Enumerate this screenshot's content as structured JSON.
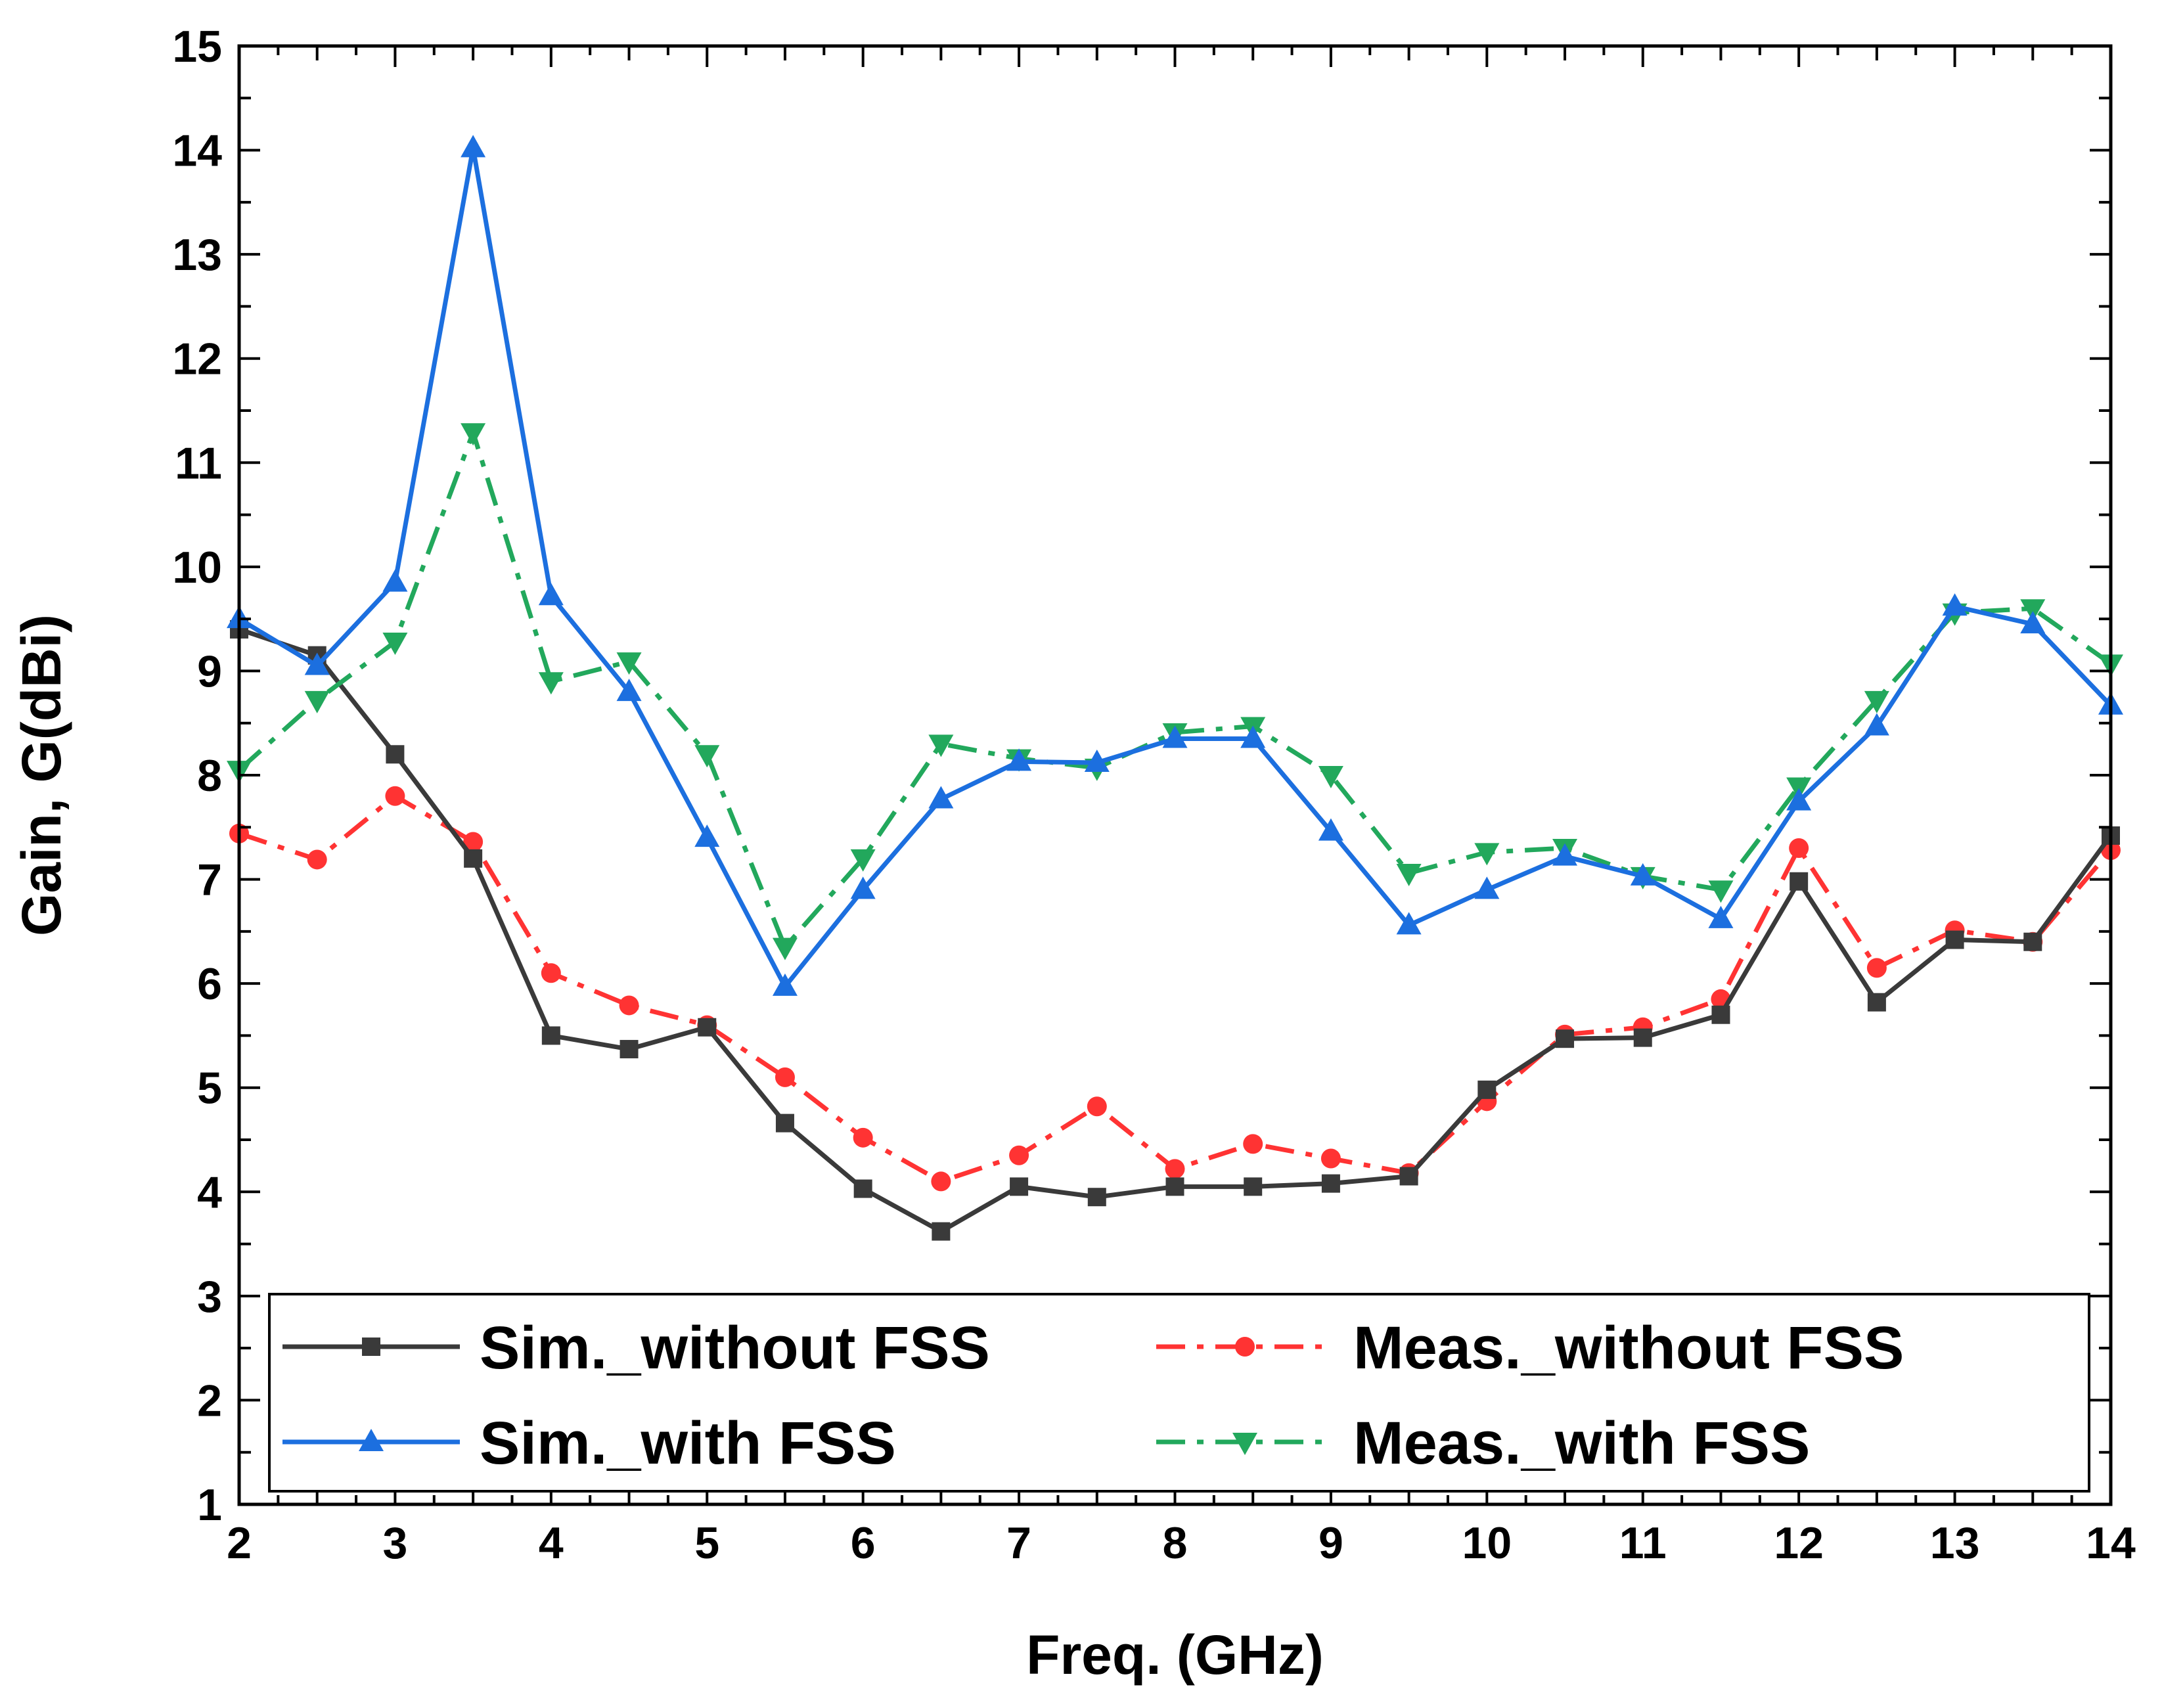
{
  "chart_data": {
    "type": "line",
    "xlabel": "Freq. (GHz)",
    "ylabel": "Gain, G(dBi)",
    "xlim": [
      2,
      14
    ],
    "ylim": [
      1,
      15
    ],
    "xticks": [
      2,
      3,
      4,
      5,
      6,
      7,
      8,
      9,
      10,
      11,
      12,
      13,
      14
    ],
    "yticks": [
      1,
      2,
      3,
      4,
      5,
      6,
      7,
      8,
      9,
      10,
      11,
      12,
      13,
      14,
      15
    ],
    "grid": false,
    "legend_position": "bottom",
    "x": [
      2,
      2.5,
      3,
      3.5,
      4,
      4.5,
      5,
      5.5,
      6,
      6.5,
      7,
      7.5,
      8,
      8.5,
      9,
      9.5,
      10,
      10.5,
      11,
      11.5,
      12,
      12.5,
      13,
      13.5,
      14
    ],
    "series": [
      {
        "name": "Sim._without FSS",
        "color": "#3a3a3a",
        "marker": "square",
        "dash": "solid",
        "values": [
          9.4,
          9.15,
          8.2,
          7.2,
          5.5,
          5.37,
          5.58,
          4.66,
          4.03,
          3.62,
          4.05,
          3.95,
          4.05,
          4.05,
          4.08,
          4.15,
          4.98,
          5.47,
          5.48,
          5.7,
          6.98,
          5.82,
          6.42,
          6.4,
          7.42
        ]
      },
      {
        "name": "Meas._without FSS",
        "color": "#ff3333",
        "marker": "circle",
        "dash": "dash-dot",
        "values": [
          7.44,
          7.19,
          7.8,
          7.36,
          6.1,
          5.79,
          5.6,
          5.1,
          4.52,
          4.1,
          4.35,
          4.82,
          4.22,
          4.46,
          4.32,
          4.18,
          4.87,
          5.51,
          5.58,
          5.85,
          7.3,
          6.15,
          6.51,
          6.4,
          7.28
        ]
      },
      {
        "name": "Sim._with FSS",
        "color": "#1c6fdf",
        "marker": "triangle-up",
        "dash": "solid",
        "values": [
          9.5,
          9.05,
          9.85,
          14.02,
          9.72,
          8.8,
          7.4,
          5.97,
          6.9,
          7.77,
          8.13,
          8.12,
          8.35,
          8.35,
          7.46,
          6.56,
          6.9,
          7.22,
          7.03,
          6.62,
          7.75,
          8.47,
          9.62,
          9.45,
          8.67
        ]
      },
      {
        "name": "Meas._with FSS",
        "color": "#22a85c",
        "marker": "triangle-down",
        "dash": "dash-dot",
        "values": [
          8.05,
          8.72,
          9.28,
          11.29,
          8.9,
          9.09,
          8.2,
          6.35,
          7.2,
          8.3,
          8.16,
          8.07,
          8.41,
          8.47,
          8.0,
          7.06,
          7.26,
          7.3,
          7.03,
          6.9,
          7.89,
          8.72,
          9.56,
          9.6,
          9.07
        ]
      }
    ]
  }
}
